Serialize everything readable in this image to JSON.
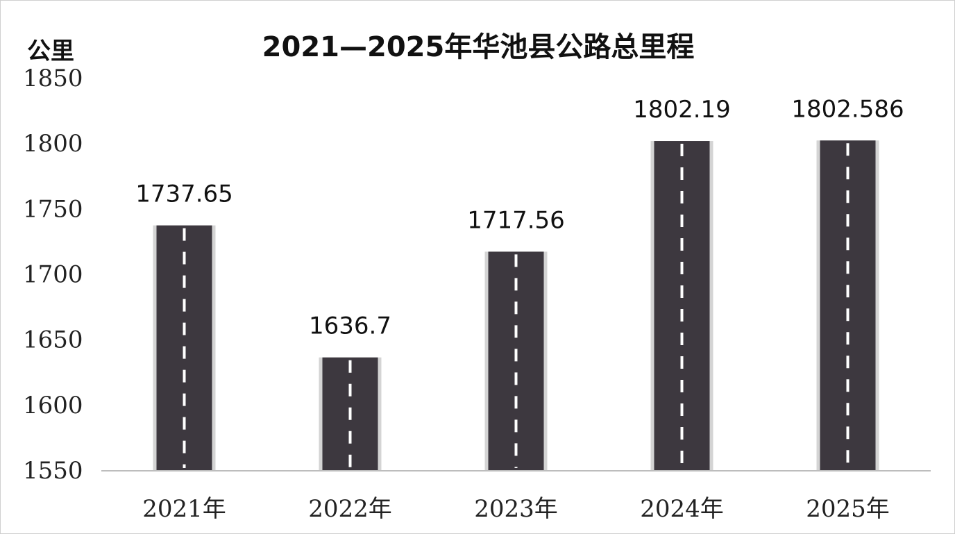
{
  "chart_data": {
    "type": "bar",
    "title": "2021—2025年华池县公路总里程",
    "ylabel": "公里",
    "xlabel": "",
    "categories": [
      "2021年",
      "2022年",
      "2023年",
      "2024年",
      "2025年"
    ],
    "values": [
      1737.65,
      1636.7,
      1717.56,
      1802.19,
      1802.586
    ],
    "data_labels": [
      "1737.65",
      "1636.7",
      "1717.56",
      "1802.19",
      "1802.586"
    ],
    "ylim": [
      1550,
      1850
    ],
    "yticks": [
      "1550",
      "1600",
      "1650",
      "1700",
      "1750",
      "1800",
      "1850"
    ],
    "grid": false,
    "legend": "none",
    "colors": {
      "bar": "#3d383f",
      "bar_edge": "#d4d4d4",
      "lane_marking": "#ffffff",
      "axis": "#bdbdbd"
    }
  }
}
